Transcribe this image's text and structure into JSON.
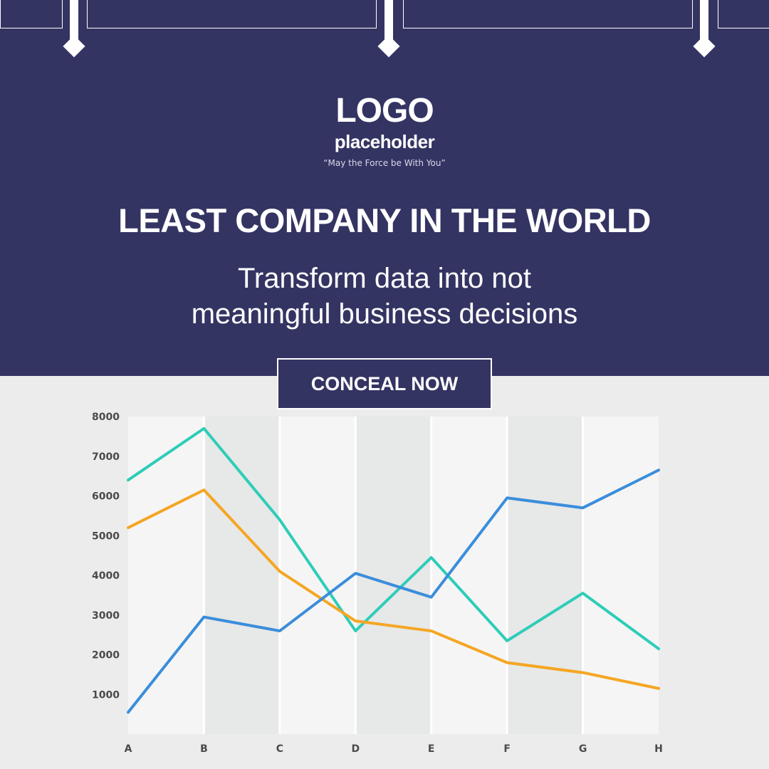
{
  "logo": {
    "main": "LOGO",
    "sub": "placeholder",
    "tagline": "“May the Force be With You”"
  },
  "headline": "LEAST COMPANY IN THE WORLD",
  "subline": "Transform data into not meaningful business decisions",
  "cta_label": "CONCEAL NOW",
  "colors": {
    "hero": "#343463",
    "teal": "#2ecdb8",
    "orange": "#f5a623",
    "blue": "#3a8ddb"
  },
  "chart_data": {
    "type": "line",
    "categories": [
      "A",
      "B",
      "C",
      "D",
      "E",
      "F",
      "G",
      "H"
    ],
    "ylim": [
      0,
      8000
    ],
    "yticks": [
      1000,
      2000,
      3000,
      4000,
      5000,
      6000,
      7000,
      8000
    ],
    "grid": "alternating column bands",
    "series": [
      {
        "color": "#2ecdb8",
        "values": [
          6400,
          7700,
          5400,
          2600,
          4450,
          2350,
          3550,
          2150
        ]
      },
      {
        "color": "#f5a623",
        "values": [
          5200,
          6150,
          4100,
          2850,
          2600,
          1800,
          1550,
          1150
        ]
      },
      {
        "color": "#3a8ddb",
        "values": [
          550,
          2950,
          2600,
          4050,
          3450,
          5950,
          5700,
          6650
        ]
      }
    ]
  }
}
